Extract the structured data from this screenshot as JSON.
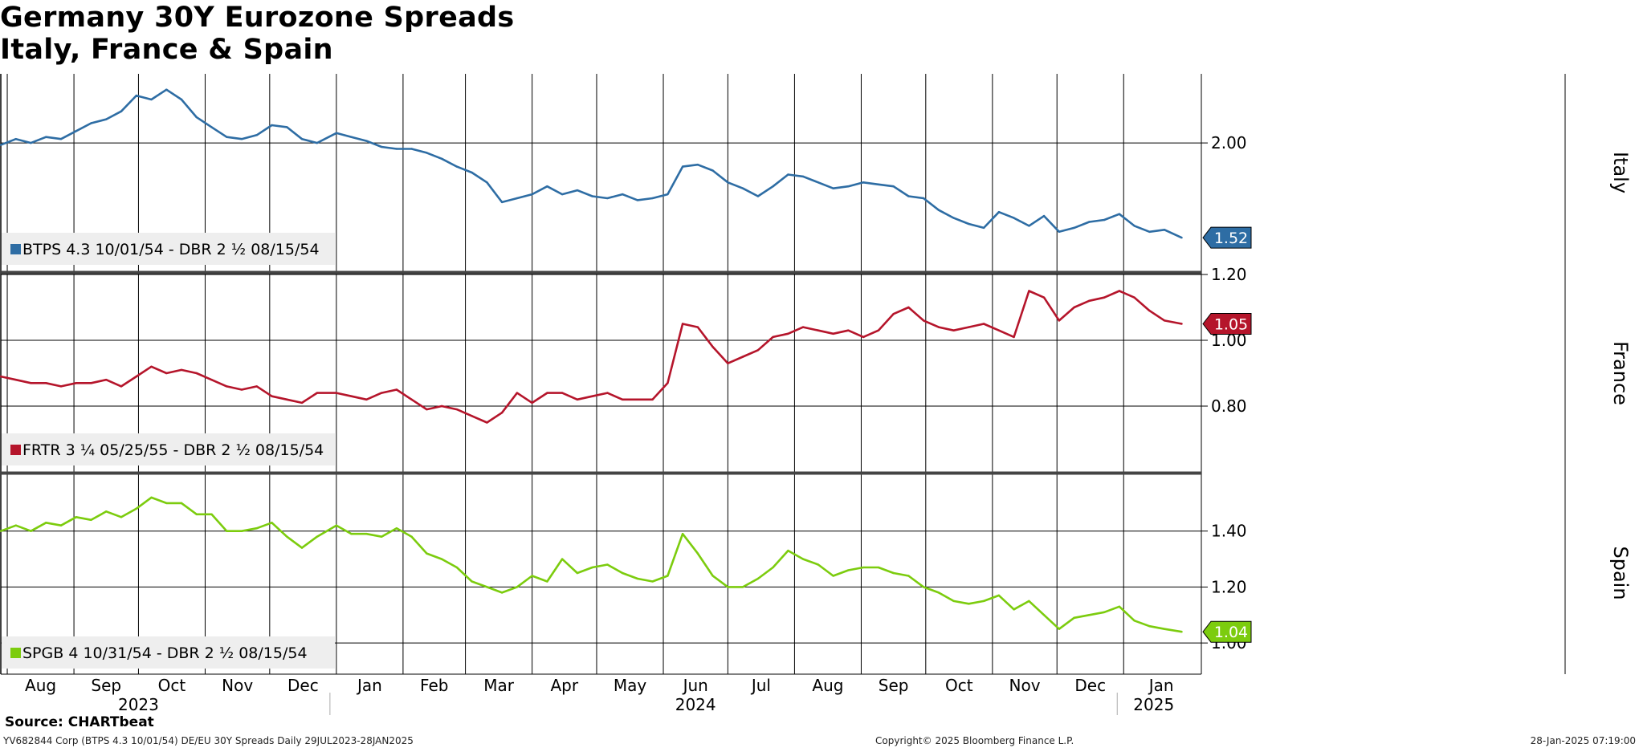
{
  "title": {
    "line1": "Germany 30Y Eurozone Spreads",
    "line2": "Italy, France & Spain"
  },
  "footer": {
    "source": "Source: CHARTbeat",
    "ticker_info": "YV682844 Corp (BTPS 4.3 10/01/54) DE/EU 30Y Spreads  Daily 29JUL2023-28JAN2025",
    "copyright": "Copyright© 2025 Bloomberg Finance L.P.",
    "timestamp": "28-Jan-2025 07:19:00"
  },
  "colors": {
    "italy": "#2e6da4",
    "france": "#b5152b",
    "spain": "#7ccc0e",
    "grid": "#000000",
    "legend_bg": "#eeeeee"
  },
  "chart_data": [
    {
      "type": "line",
      "panel_label": "Italy",
      "legend": "BTPS 4.3 10/01/54 - DBR 2 ½ 08/15/54",
      "last_value_label": "1.52",
      "ylim": [
        1.35,
        2.35
      ],
      "yticks": [
        "2.00"
      ],
      "points": [
        [
          "2023-07-29",
          1.99
        ],
        [
          "2023-08-05",
          2.02
        ],
        [
          "2023-08-12",
          2.0
        ],
        [
          "2023-08-19",
          2.03
        ],
        [
          "2023-08-26",
          2.02
        ],
        [
          "2023-09-02",
          2.06
        ],
        [
          "2023-09-09",
          2.1
        ],
        [
          "2023-09-16",
          2.12
        ],
        [
          "2023-09-23",
          2.16
        ],
        [
          "2023-09-30",
          2.24
        ],
        [
          "2023-10-07",
          2.22
        ],
        [
          "2023-10-14",
          2.27
        ],
        [
          "2023-10-21",
          2.22
        ],
        [
          "2023-10-28",
          2.13
        ],
        [
          "2023-11-04",
          2.08
        ],
        [
          "2023-11-11",
          2.03
        ],
        [
          "2023-11-18",
          2.02
        ],
        [
          "2023-11-25",
          2.04
        ],
        [
          "2023-12-02",
          2.09
        ],
        [
          "2023-12-09",
          2.08
        ],
        [
          "2023-12-16",
          2.02
        ],
        [
          "2023-12-23",
          2.0
        ],
        [
          "2024-01-01",
          2.05
        ],
        [
          "2024-01-08",
          2.03
        ],
        [
          "2024-01-15",
          2.01
        ],
        [
          "2024-01-22",
          1.98
        ],
        [
          "2024-01-29",
          1.97
        ],
        [
          "2024-02-05",
          1.97
        ],
        [
          "2024-02-12",
          1.95
        ],
        [
          "2024-02-19",
          1.92
        ],
        [
          "2024-02-26",
          1.88
        ],
        [
          "2024-03-04",
          1.85
        ],
        [
          "2024-03-11",
          1.8
        ],
        [
          "2024-03-18",
          1.7
        ],
        [
          "2024-03-25",
          1.72
        ],
        [
          "2024-04-01",
          1.74
        ],
        [
          "2024-04-08",
          1.78
        ],
        [
          "2024-04-15",
          1.74
        ],
        [
          "2024-04-22",
          1.76
        ],
        [
          "2024-04-29",
          1.73
        ],
        [
          "2024-05-06",
          1.72
        ],
        [
          "2024-05-13",
          1.74
        ],
        [
          "2024-05-20",
          1.71
        ],
        [
          "2024-05-27",
          1.72
        ],
        [
          "2024-06-03",
          1.74
        ],
        [
          "2024-06-10",
          1.88
        ],
        [
          "2024-06-17",
          1.89
        ],
        [
          "2024-06-24",
          1.86
        ],
        [
          "2024-07-01",
          1.8
        ],
        [
          "2024-07-08",
          1.77
        ],
        [
          "2024-07-15",
          1.73
        ],
        [
          "2024-07-22",
          1.78
        ],
        [
          "2024-07-29",
          1.84
        ],
        [
          "2024-08-05",
          1.83
        ],
        [
          "2024-08-12",
          1.8
        ],
        [
          "2024-08-19",
          1.77
        ],
        [
          "2024-08-26",
          1.78
        ],
        [
          "2024-09-02",
          1.8
        ],
        [
          "2024-09-09",
          1.79
        ],
        [
          "2024-09-16",
          1.78
        ],
        [
          "2024-09-23",
          1.73
        ],
        [
          "2024-09-30",
          1.72
        ],
        [
          "2024-10-07",
          1.66
        ],
        [
          "2024-10-14",
          1.62
        ],
        [
          "2024-10-21",
          1.59
        ],
        [
          "2024-10-28",
          1.57
        ],
        [
          "2024-11-04",
          1.65
        ],
        [
          "2024-11-11",
          1.62
        ],
        [
          "2024-11-18",
          1.58
        ],
        [
          "2024-11-25",
          1.63
        ],
        [
          "2024-12-02",
          1.55
        ],
        [
          "2024-12-09",
          1.57
        ],
        [
          "2024-12-16",
          1.6
        ],
        [
          "2024-12-23",
          1.61
        ],
        [
          "2024-12-30",
          1.64
        ],
        [
          "2025-01-06",
          1.58
        ],
        [
          "2025-01-13",
          1.55
        ],
        [
          "2025-01-20",
          1.56
        ],
        [
          "2025-01-28",
          1.52
        ]
      ]
    },
    {
      "type": "line",
      "panel_label": "France",
      "legend": "FRTR 3 ¼ 05/25/55 - DBR 2 ½ 08/15/54",
      "last_value_label": "1.05",
      "ylim": [
        0.6,
        1.2
      ],
      "yticks": [
        "1.20",
        "1.00",
        "0.80"
      ],
      "points": [
        [
          "2023-07-29",
          0.89
        ],
        [
          "2023-08-05",
          0.88
        ],
        [
          "2023-08-12",
          0.87
        ],
        [
          "2023-08-19",
          0.87
        ],
        [
          "2023-08-26",
          0.86
        ],
        [
          "2023-09-02",
          0.87
        ],
        [
          "2023-09-09",
          0.87
        ],
        [
          "2023-09-16",
          0.88
        ],
        [
          "2023-09-23",
          0.86
        ],
        [
          "2023-09-30",
          0.89
        ],
        [
          "2023-10-07",
          0.92
        ],
        [
          "2023-10-14",
          0.9
        ],
        [
          "2023-10-21",
          0.91
        ],
        [
          "2023-10-28",
          0.9
        ],
        [
          "2023-11-04",
          0.88
        ],
        [
          "2023-11-11",
          0.86
        ],
        [
          "2023-11-18",
          0.85
        ],
        [
          "2023-11-25",
          0.86
        ],
        [
          "2023-12-02",
          0.83
        ],
        [
          "2023-12-09",
          0.82
        ],
        [
          "2023-12-16",
          0.81
        ],
        [
          "2023-12-23",
          0.84
        ],
        [
          "2024-01-01",
          0.84
        ],
        [
          "2024-01-08",
          0.83
        ],
        [
          "2024-01-15",
          0.82
        ],
        [
          "2024-01-22",
          0.84
        ],
        [
          "2024-01-29",
          0.85
        ],
        [
          "2024-02-05",
          0.82
        ],
        [
          "2024-02-12",
          0.79
        ],
        [
          "2024-02-19",
          0.8
        ],
        [
          "2024-02-26",
          0.79
        ],
        [
          "2024-03-04",
          0.77
        ],
        [
          "2024-03-11",
          0.75
        ],
        [
          "2024-03-18",
          0.78
        ],
        [
          "2024-03-25",
          0.84
        ],
        [
          "2024-04-01",
          0.81
        ],
        [
          "2024-04-08",
          0.84
        ],
        [
          "2024-04-15",
          0.84
        ],
        [
          "2024-04-22",
          0.82
        ],
        [
          "2024-04-29",
          0.83
        ],
        [
          "2024-05-06",
          0.84
        ],
        [
          "2024-05-13",
          0.82
        ],
        [
          "2024-05-20",
          0.82
        ],
        [
          "2024-05-27",
          0.82
        ],
        [
          "2024-06-03",
          0.87
        ],
        [
          "2024-06-10",
          1.05
        ],
        [
          "2024-06-17",
          1.04
        ],
        [
          "2024-06-24",
          0.98
        ],
        [
          "2024-07-01",
          0.93
        ],
        [
          "2024-07-08",
          0.95
        ],
        [
          "2024-07-15",
          0.97
        ],
        [
          "2024-07-22",
          1.01
        ],
        [
          "2024-07-29",
          1.02
        ],
        [
          "2024-08-05",
          1.04
        ],
        [
          "2024-08-12",
          1.03
        ],
        [
          "2024-08-19",
          1.02
        ],
        [
          "2024-08-26",
          1.03
        ],
        [
          "2024-09-02",
          1.01
        ],
        [
          "2024-09-09",
          1.03
        ],
        [
          "2024-09-16",
          1.08
        ],
        [
          "2024-09-23",
          1.1
        ],
        [
          "2024-09-30",
          1.06
        ],
        [
          "2024-10-07",
          1.04
        ],
        [
          "2024-10-14",
          1.03
        ],
        [
          "2024-10-21",
          1.04
        ],
        [
          "2024-10-28",
          1.05
        ],
        [
          "2024-11-04",
          1.03
        ],
        [
          "2024-11-11",
          1.01
        ],
        [
          "2024-11-18",
          1.15
        ],
        [
          "2024-11-25",
          1.13
        ],
        [
          "2024-12-02",
          1.06
        ],
        [
          "2024-12-09",
          1.1
        ],
        [
          "2024-12-16",
          1.12
        ],
        [
          "2024-12-23",
          1.13
        ],
        [
          "2024-12-30",
          1.15
        ],
        [
          "2025-01-06",
          1.13
        ],
        [
          "2025-01-13",
          1.09
        ],
        [
          "2025-01-20",
          1.06
        ],
        [
          "2025-01-28",
          1.05
        ]
      ]
    },
    {
      "type": "line",
      "panel_label": "Spain",
      "legend": "SPGB 4 10/31/54 - DBR 2 ½ 08/15/54",
      "last_value_label": "1.04",
      "ylim": [
        0.9,
        1.6
      ],
      "yticks": [
        "1.40",
        "1.20",
        "1.00"
      ],
      "points": [
        [
          "2023-07-29",
          1.4
        ],
        [
          "2023-08-05",
          1.42
        ],
        [
          "2023-08-12",
          1.4
        ],
        [
          "2023-08-19",
          1.43
        ],
        [
          "2023-08-26",
          1.42
        ],
        [
          "2023-09-02",
          1.45
        ],
        [
          "2023-09-09",
          1.44
        ],
        [
          "2023-09-16",
          1.47
        ],
        [
          "2023-09-23",
          1.45
        ],
        [
          "2023-09-30",
          1.48
        ],
        [
          "2023-10-07",
          1.52
        ],
        [
          "2023-10-14",
          1.5
        ],
        [
          "2023-10-21",
          1.5
        ],
        [
          "2023-10-28",
          1.46
        ],
        [
          "2023-11-04",
          1.46
        ],
        [
          "2023-11-11",
          1.4
        ],
        [
          "2023-11-18",
          1.4
        ],
        [
          "2023-11-25",
          1.41
        ],
        [
          "2023-12-02",
          1.43
        ],
        [
          "2023-12-09",
          1.38
        ],
        [
          "2023-12-16",
          1.34
        ],
        [
          "2023-12-23",
          1.38
        ],
        [
          "2024-01-01",
          1.42
        ],
        [
          "2024-01-08",
          1.39
        ],
        [
          "2024-01-15",
          1.39
        ],
        [
          "2024-01-22",
          1.38
        ],
        [
          "2024-01-29",
          1.41
        ],
        [
          "2024-02-05",
          1.38
        ],
        [
          "2024-02-12",
          1.32
        ],
        [
          "2024-02-19",
          1.3
        ],
        [
          "2024-02-26",
          1.27
        ],
        [
          "2024-03-04",
          1.22
        ],
        [
          "2024-03-11",
          1.2
        ],
        [
          "2024-03-18",
          1.18
        ],
        [
          "2024-03-25",
          1.2
        ],
        [
          "2024-04-01",
          1.24
        ],
        [
          "2024-04-08",
          1.22
        ],
        [
          "2024-04-15",
          1.3
        ],
        [
          "2024-04-22",
          1.25
        ],
        [
          "2024-04-29",
          1.27
        ],
        [
          "2024-05-06",
          1.28
        ],
        [
          "2024-05-13",
          1.25
        ],
        [
          "2024-05-20",
          1.23
        ],
        [
          "2024-05-27",
          1.22
        ],
        [
          "2024-06-03",
          1.24
        ],
        [
          "2024-06-10",
          1.39
        ],
        [
          "2024-06-17",
          1.32
        ],
        [
          "2024-06-24",
          1.24
        ],
        [
          "2024-07-01",
          1.2
        ],
        [
          "2024-07-08",
          1.2
        ],
        [
          "2024-07-15",
          1.23
        ],
        [
          "2024-07-22",
          1.27
        ],
        [
          "2024-07-29",
          1.33
        ],
        [
          "2024-08-05",
          1.3
        ],
        [
          "2024-08-12",
          1.28
        ],
        [
          "2024-08-19",
          1.24
        ],
        [
          "2024-08-26",
          1.26
        ],
        [
          "2024-09-02",
          1.27
        ],
        [
          "2024-09-09",
          1.27
        ],
        [
          "2024-09-16",
          1.25
        ],
        [
          "2024-09-23",
          1.24
        ],
        [
          "2024-09-30",
          1.2
        ],
        [
          "2024-10-07",
          1.18
        ],
        [
          "2024-10-14",
          1.15
        ],
        [
          "2024-10-21",
          1.14
        ],
        [
          "2024-10-28",
          1.15
        ],
        [
          "2024-11-04",
          1.17
        ],
        [
          "2024-11-11",
          1.12
        ],
        [
          "2024-11-18",
          1.15
        ],
        [
          "2024-11-25",
          1.1
        ],
        [
          "2024-12-02",
          1.05
        ],
        [
          "2024-12-09",
          1.09
        ],
        [
          "2024-12-16",
          1.1
        ],
        [
          "2024-12-23",
          1.11
        ],
        [
          "2024-12-30",
          1.13
        ],
        [
          "2025-01-06",
          1.08
        ],
        [
          "2025-01-13",
          1.06
        ],
        [
          "2025-01-20",
          1.05
        ],
        [
          "2025-01-28",
          1.04
        ]
      ]
    }
  ],
  "x_axis": {
    "range": [
      "2023-07-29",
      "2025-02-05"
    ],
    "months": [
      {
        "date": "2023-08-01",
        "label": "Aug"
      },
      {
        "date": "2023-09-01",
        "label": "Sep"
      },
      {
        "date": "2023-10-01",
        "label": "Oct"
      },
      {
        "date": "2023-11-01",
        "label": "Nov"
      },
      {
        "date": "2023-12-01",
        "label": "Dec"
      },
      {
        "date": "2024-01-01",
        "label": "Jan"
      },
      {
        "date": "2024-02-01",
        "label": "Feb"
      },
      {
        "date": "2024-03-01",
        "label": "Mar"
      },
      {
        "date": "2024-04-01",
        "label": "Apr"
      },
      {
        "date": "2024-05-01",
        "label": "May"
      },
      {
        "date": "2024-06-01",
        "label": "Jun"
      },
      {
        "date": "2024-07-01",
        "label": "Jul"
      },
      {
        "date": "2024-08-01",
        "label": "Aug"
      },
      {
        "date": "2024-09-01",
        "label": "Sep"
      },
      {
        "date": "2024-10-01",
        "label": "Oct"
      },
      {
        "date": "2024-11-01",
        "label": "Nov"
      },
      {
        "date": "2024-12-01",
        "label": "Dec"
      },
      {
        "date": "2025-01-01",
        "label": "Jan"
      }
    ],
    "years": [
      {
        "label": "2023",
        "center": "2023-10-01"
      },
      {
        "label": "2024",
        "center": "2024-06-16"
      },
      {
        "label": "2025",
        "center": "2025-01-15"
      }
    ],
    "year_breaks": [
      "2024-01-01",
      "2025-01-01"
    ]
  }
}
